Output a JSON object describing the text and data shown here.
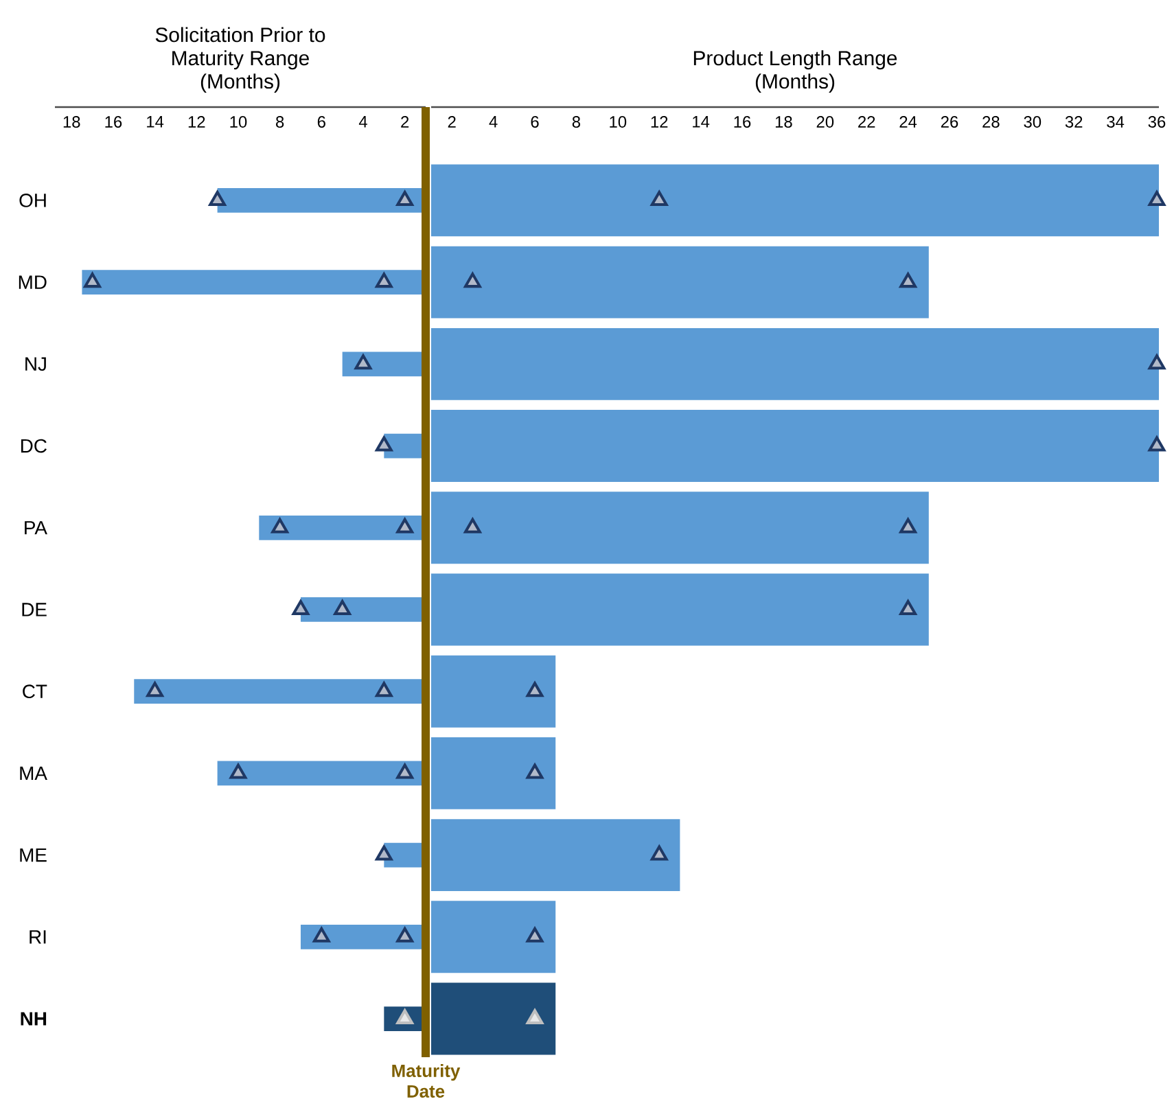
{
  "chart_data": [
    {
      "type": "bar",
      "orientation": "horizontal",
      "title": "Solicitation Prior to Maturity Range (Months)",
      "categories": [
        "OH",
        "MD",
        "NJ",
        "DC",
        "PA",
        "DE",
        "CT",
        "MA",
        "ME",
        "RI",
        "**NH**"
      ],
      "xlim": [
        18.8,
        1
      ],
      "xticks": [
        18,
        16,
        14,
        12,
        10,
        8,
        6,
        4,
        2
      ],
      "marker": "triangle",
      "series": [
        {
          "values": [
            10,
            16.5,
            4,
            2,
            8,
            6,
            14,
            10,
            2,
            6,
            2
          ],
          "base": [
            1,
            1,
            1,
            1,
            1,
            1,
            1,
            1,
            1,
            1,
            1
          ],
          "colors": [
            "#5b9bd5",
            "#5b9bd5",
            "#5b9bd5",
            "#5b9bd5",
            "#5b9bd5",
            "#5b9bd5",
            "#5b9bd5",
            "#5b9bd5",
            "#5b9bd5",
            "#5b9bd5",
            "#1f4e79"
          ]
        },
        {
          "type": "scatter",
          "values": [
            11,
            17,
            4,
            3,
            8,
            7,
            14,
            10,
            3,
            6,
            null
          ],
          "colors": [
            "#1f3864",
            "#1f3864",
            "#1f3864",
            "#1f3864",
            "#1f3864",
            "#1f3864",
            "#1f3864",
            "#1f3864",
            "#1f3864",
            "#1f3864",
            "#bfbfbf"
          ]
        },
        {
          "type": "scatter",
          "values": [
            2,
            3,
            null,
            null,
            2,
            5,
            3,
            2,
            null,
            2,
            2
          ],
          "colors": [
            "#1f3864",
            "#1f3864",
            "#1f3864",
            "#1f3864",
            "#1f3864",
            "#1f3864",
            "#1f3864",
            "#1f3864",
            "#1f3864",
            "#1f3864",
            "#bfbfbf"
          ]
        }
      ],
      "ref_lines": [
        {
          "axis": "x",
          "value": 1,
          "label": "Maturity Date",
          "color": "#7f6000"
        }
      ]
    },
    {
      "type": "bar",
      "orientation": "horizontal",
      "title": "Product Length Range (Months)",
      "categories": [
        null,
        null,
        null,
        null,
        null,
        null,
        null,
        null,
        null,
        null,
        null
      ],
      "xlim": [
        1,
        36.1
      ],
      "xticks": [
        2,
        4,
        6,
        8,
        10,
        12,
        14,
        16,
        18,
        20,
        22,
        24,
        26,
        28,
        30,
        32,
        34,
        36
      ],
      "marker": "triangle",
      "tick_labels": "x",
      "series": [
        {
          "values": [
            35.1,
            24,
            35.1,
            35.1,
            24,
            24,
            6,
            6,
            12,
            6,
            6
          ],
          "base": [
            1,
            1,
            1,
            1,
            1,
            1,
            1,
            1,
            1,
            1,
            1
          ],
          "colors": [
            "#5b9bd5",
            "#5b9bd5",
            "#5b9bd5",
            "#5b9bd5",
            "#5b9bd5",
            "#5b9bd5",
            "#5b9bd5",
            "#5b9bd5",
            "#5b9bd5",
            "#5b9bd5",
            "#1f4e79"
          ]
        },
        {
          "type": "scatter",
          "values": [
            12,
            3,
            null,
            null,
            3,
            null,
            null,
            null,
            null,
            null,
            null
          ],
          "colors": [
            "#1f3864",
            "#1f3864",
            "#1f3864",
            "#1f3864",
            "#1f3864",
            "#1f3864",
            "#1f3864",
            "#1f3864",
            "#1f3864",
            "#1f3864",
            "#bfbfbf"
          ]
        },
        {
          "type": "scatter",
          "values": [
            36,
            24,
            36,
            36,
            24,
            24,
            6,
            6,
            12,
            6,
            6
          ],
          "colors": [
            "#1f3864",
            "#1f3864",
            "#1f3864",
            "#1f3864",
            "#1f3864",
            "#1f3864",
            "#1f3864",
            "#1f3864",
            "#1f3864",
            "#1f3864",
            "#bfbfbf"
          ]
        }
      ]
    }
  ]
}
